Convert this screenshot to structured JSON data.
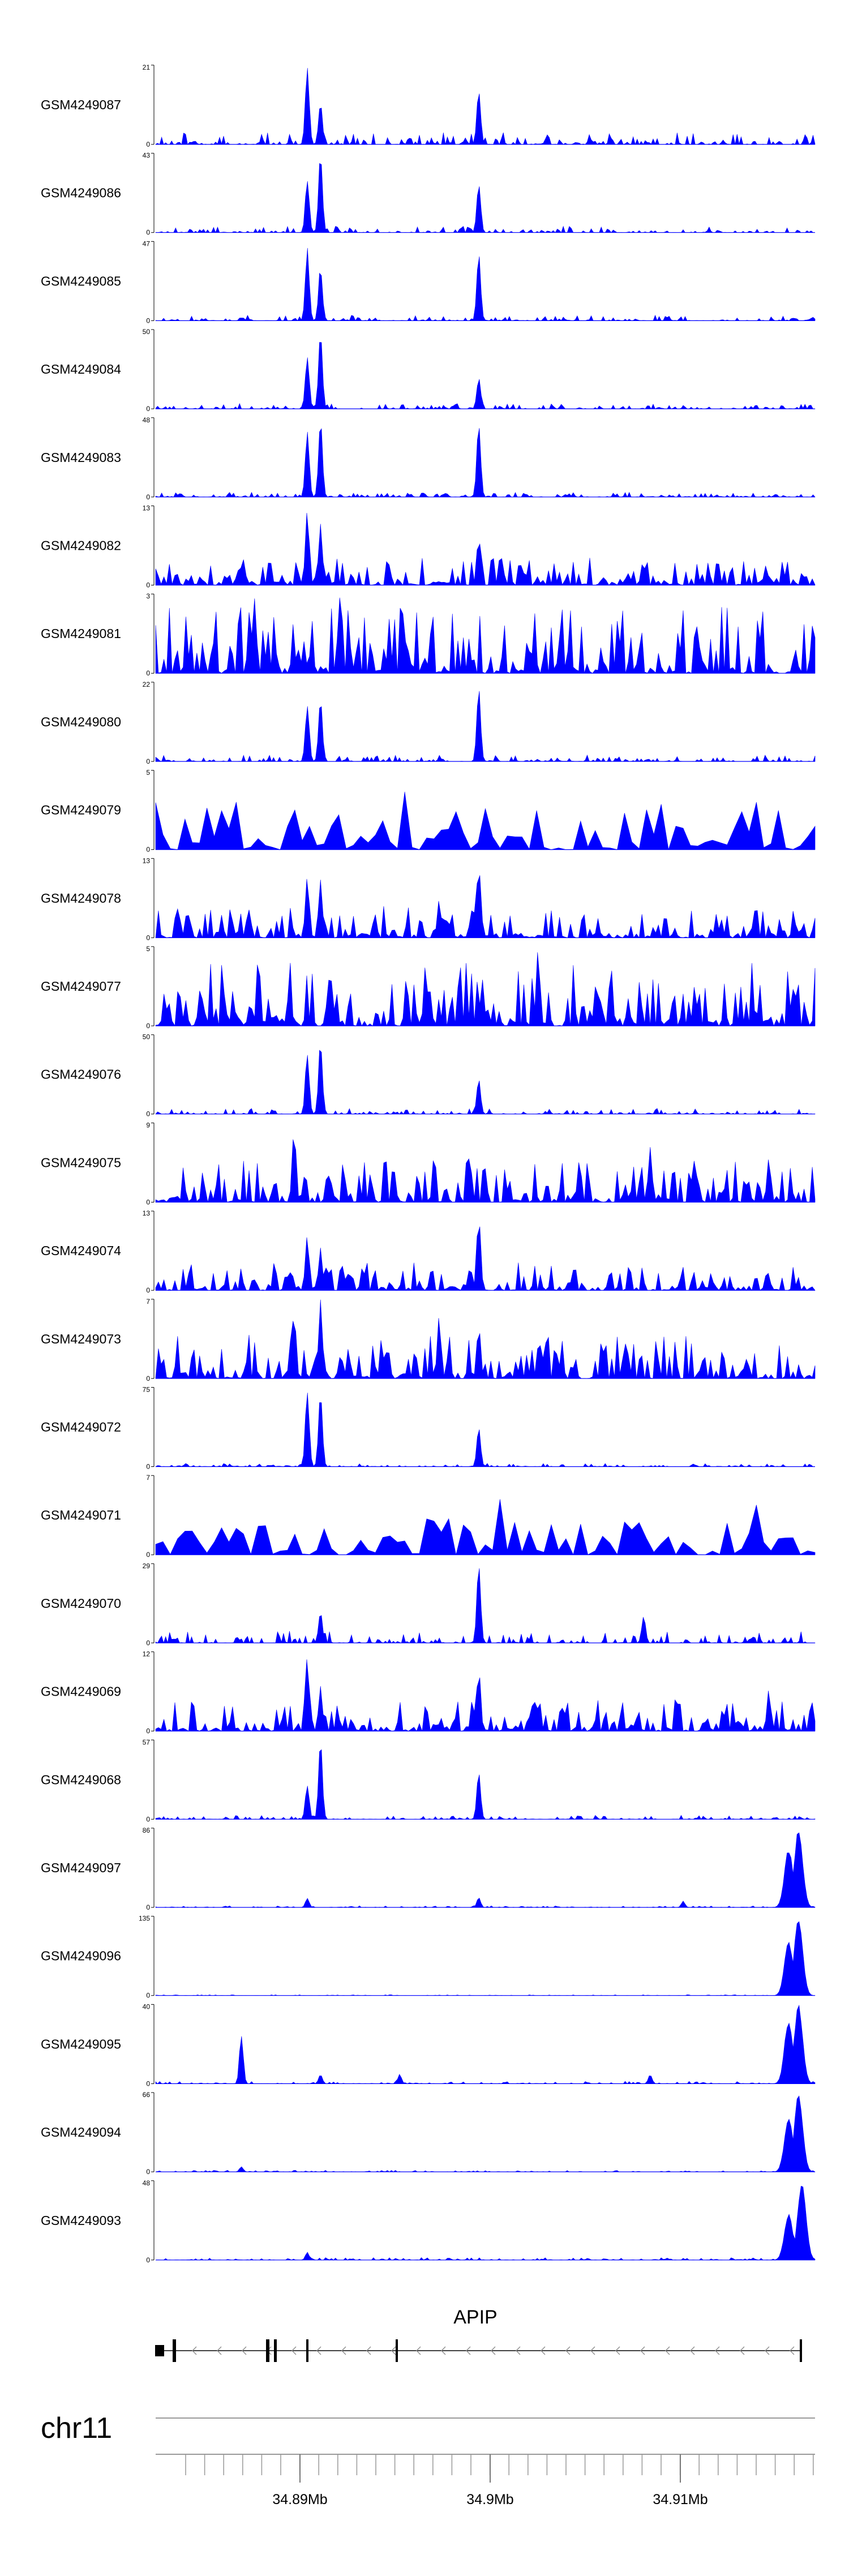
{
  "chart_data": {
    "type": "area",
    "title": "",
    "fill_color": "#0000ff",
    "chromosome": "chr11",
    "x_ticks": [
      "34.89Mb",
      "34.9Mb",
      "34.91Mb"
    ],
    "gene": {
      "name": "APIP",
      "strand": "-"
    },
    "tracks": [
      {
        "name": "GSM4249087",
        "ymax": "21",
        "ymin": "0",
        "pattern": "peaks",
        "peaks": [
          [
            0.23,
            1.0
          ],
          [
            0.25,
            0.55
          ],
          [
            0.49,
            0.7
          ]
        ],
        "noise": 0.15
      },
      {
        "name": "GSM4249086",
        "ymax": "43",
        "ymin": "0",
        "pattern": "peaks",
        "peaks": [
          [
            0.23,
            0.7
          ],
          [
            0.25,
            1.0
          ],
          [
            0.49,
            0.65
          ]
        ],
        "noise": 0.08
      },
      {
        "name": "GSM4249085",
        "ymax": "47",
        "ymin": "0",
        "pattern": "peaks",
        "peaks": [
          [
            0.23,
            0.95
          ],
          [
            0.25,
            0.7
          ],
          [
            0.49,
            0.85
          ]
        ],
        "noise": 0.07
      },
      {
        "name": "GSM4249084",
        "ymax": "50",
        "ymin": "0",
        "pattern": "peaks",
        "peaks": [
          [
            0.23,
            0.7
          ],
          [
            0.25,
            1.0
          ],
          [
            0.49,
            0.4
          ]
        ],
        "noise": 0.07
      },
      {
        "name": "GSM4249083",
        "ymax": "48",
        "ymin": "0",
        "pattern": "peaks",
        "peaks": [
          [
            0.23,
            0.85
          ],
          [
            0.25,
            1.0
          ],
          [
            0.49,
            0.95
          ]
        ],
        "noise": 0.06
      },
      {
        "name": "GSM4249082",
        "ymax": "13",
        "ymin": "0",
        "pattern": "dense",
        "peaks": [
          [
            0.23,
            1.0
          ],
          [
            0.25,
            0.8
          ],
          [
            0.49,
            0.65
          ]
        ],
        "noise": 0.35
      },
      {
        "name": "GSM4249081",
        "ymax": "3",
        "ymin": "0",
        "pattern": "dense",
        "peaks": [
          [
            0.15,
            1.0
          ],
          [
            0.28,
            1.0
          ]
        ],
        "noise": 0.85
      },
      {
        "name": "GSM4249080",
        "ymax": "22",
        "ymin": "0",
        "pattern": "peaks",
        "peaks": [
          [
            0.23,
            0.75
          ],
          [
            0.25,
            0.8
          ],
          [
            0.49,
            0.95
          ]
        ],
        "noise": 0.08
      },
      {
        "name": "GSM4249079",
        "ymax": "5",
        "ymin": "0",
        "pattern": "sparse",
        "peaks": [
          [
            0.38,
            1.0
          ],
          [
            0.55,
            0.95
          ]
        ],
        "noise": 0.6
      },
      {
        "name": "GSM4249078",
        "ymax": "13",
        "ymin": "0",
        "pattern": "dense",
        "peaks": [
          [
            0.23,
            0.8
          ],
          [
            0.25,
            0.75
          ],
          [
            0.49,
            1.0
          ],
          [
            0.43,
            0.5
          ]
        ],
        "noise": 0.4
      },
      {
        "name": "GSM4249077",
        "ymax": "5",
        "ymin": "0",
        "pattern": "dense",
        "peaks": [
          [
            0.58,
            1.0
          ]
        ],
        "noise": 0.8
      },
      {
        "name": "GSM4249076",
        "ymax": "50",
        "ymin": "0",
        "pattern": "peaks",
        "peaks": [
          [
            0.23,
            0.8
          ],
          [
            0.25,
            0.95
          ],
          [
            0.49,
            0.45
          ]
        ],
        "noise": 0.07
      },
      {
        "name": "GSM4249075",
        "ymax": "9",
        "ymin": "0",
        "pattern": "dense",
        "peaks": [
          [
            0.21,
            1.0
          ],
          [
            0.75,
            0.75
          ],
          [
            0.93,
            0.6
          ]
        ],
        "noise": 0.55
      },
      {
        "name": "GSM4249074",
        "ymax": "13",
        "ymin": "0",
        "pattern": "dense",
        "peaks": [
          [
            0.23,
            0.7
          ],
          [
            0.25,
            0.55
          ],
          [
            0.49,
            1.0
          ]
        ],
        "noise": 0.35
      },
      {
        "name": "GSM4249073",
        "ymax": "7",
        "ymin": "0",
        "pattern": "dense",
        "peaks": [
          [
            0.21,
            0.85
          ],
          [
            0.25,
            1.0
          ],
          [
            0.43,
            0.8
          ],
          [
            0.49,
            0.7
          ]
        ],
        "noise": 0.55
      },
      {
        "name": "GSM4249072",
        "ymax": "75",
        "ymin": "0",
        "pattern": "peaks",
        "peaks": [
          [
            0.23,
            1.0
          ],
          [
            0.25,
            0.95
          ],
          [
            0.49,
            0.5
          ]
        ],
        "noise": 0.04
      },
      {
        "name": "GSM4249071",
        "ymax": "7",
        "ymin": "0",
        "pattern": "sparse",
        "peaks": [
          [
            0.52,
            1.0
          ],
          [
            0.47,
            0.75
          ],
          [
            0.57,
            0.6
          ],
          [
            0.91,
            0.7
          ]
        ],
        "noise": 0.5
      },
      {
        "name": "GSM4249070",
        "ymax": "29",
        "ymin": "0",
        "pattern": "peaks",
        "peaks": [
          [
            0.25,
            0.4
          ],
          [
            0.49,
            1.0
          ],
          [
            0.74,
            0.35
          ]
        ],
        "noise": 0.15
      },
      {
        "name": "GSM4249069",
        "ymax": "12",
        "ymin": "0",
        "pattern": "dense",
        "peaks": [
          [
            0.23,
            1.0
          ],
          [
            0.25,
            0.6
          ],
          [
            0.49,
            0.8
          ],
          [
            0.93,
            0.55
          ]
        ],
        "noise": 0.4
      },
      {
        "name": "GSM4249068",
        "ymax": "57",
        "ymin": "0",
        "pattern": "peaks",
        "peaks": [
          [
            0.23,
            0.45
          ],
          [
            0.25,
            1.0
          ],
          [
            0.49,
            0.6
          ]
        ],
        "noise": 0.05
      },
      {
        "name": "GSM4249097",
        "ymax": "86",
        "ymin": "0",
        "pattern": "end",
        "peaks": [
          [
            0.23,
            0.12
          ],
          [
            0.49,
            0.13
          ],
          [
            0.8,
            0.08
          ],
          [
            0.96,
            0.75
          ],
          [
            0.975,
            1.0
          ]
        ],
        "noise": 0.02
      },
      {
        "name": "GSM4249096",
        "ymax": "135",
        "ymin": "0",
        "pattern": "end",
        "peaks": [
          [
            0.96,
            0.7
          ],
          [
            0.975,
            1.0
          ]
        ],
        "noise": 0.01
      },
      {
        "name": "GSM4249095",
        "ymax": "40",
        "ymin": "0",
        "pattern": "end",
        "peaks": [
          [
            0.13,
            0.65
          ],
          [
            0.25,
            0.12
          ],
          [
            0.37,
            0.12
          ],
          [
            0.75,
            0.12
          ],
          [
            0.96,
            0.8
          ],
          [
            0.975,
            1.0
          ]
        ],
        "noise": 0.03
      },
      {
        "name": "GSM4249094",
        "ymax": "66",
        "ymin": "0",
        "pattern": "end",
        "peaks": [
          [
            0.13,
            0.07
          ],
          [
            0.96,
            0.7
          ],
          [
            0.975,
            1.0
          ]
        ],
        "noise": 0.02
      },
      {
        "name": "GSM4249093",
        "ymax": "48",
        "ymin": "0",
        "pattern": "end",
        "peaks": [
          [
            0.23,
            0.1
          ],
          [
            0.96,
            0.6
          ],
          [
            0.98,
            1.0
          ]
        ],
        "noise": 0.03
      }
    ]
  }
}
